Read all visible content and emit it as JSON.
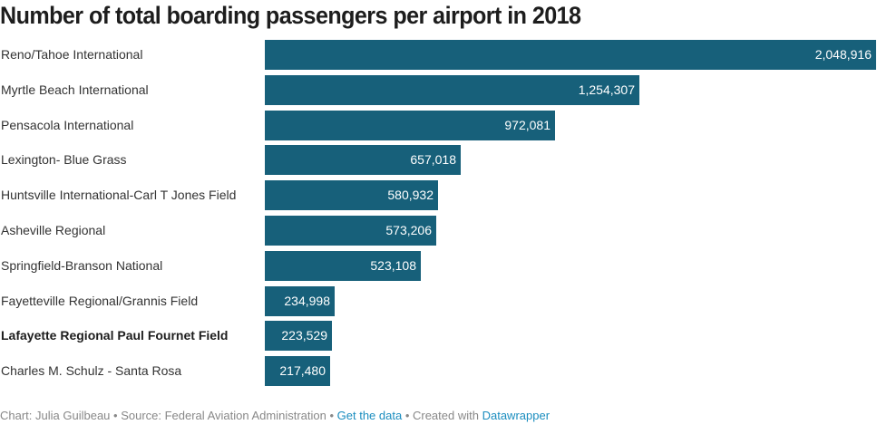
{
  "chart_data": {
    "type": "bar",
    "orientation": "horizontal",
    "title": "Number of total boarding passengers per airport in 2018",
    "xlabel": "",
    "ylabel": "",
    "xlim": [
      0,
      2048916
    ],
    "grid": false,
    "legend": "none",
    "bar_color": "#17607a",
    "categories": [
      "Reno/Tahoe International",
      "Myrtle Beach International",
      "Pensacola International",
      "Lexington- Blue Grass",
      "Huntsville International-Carl T Jones Field",
      "Asheville Regional",
      "Springfield-Branson National",
      "Fayetteville Regional/Grannis Field",
      "Lafayette Regional Paul Fournet Field",
      "Charles M. Schulz - Santa Rosa"
    ],
    "values": [
      2048916,
      1254307,
      972081,
      657018,
      580932,
      573206,
      523108,
      234998,
      223529,
      217480
    ],
    "value_labels": [
      "2,048,916",
      "1,254,307",
      "972,081",
      "657,018",
      "580,932",
      "573,206",
      "523,108",
      "234,998",
      "223,529",
      "217,480"
    ],
    "highlighted": [
      "Lafayette Regional Paul Fournet Field"
    ]
  },
  "footer": {
    "chart_credit": "Chart: Julia Guilbeau",
    "sep": " • ",
    "source": "Source: Federal Aviation Administration",
    "get_data_link": "Get the data",
    "created_with": "Created with",
    "datawrapper_link": "Datawrapper"
  },
  "colors": {
    "bar": "#17607a",
    "link": "#1a8dbf",
    "footer_text": "#888888"
  }
}
